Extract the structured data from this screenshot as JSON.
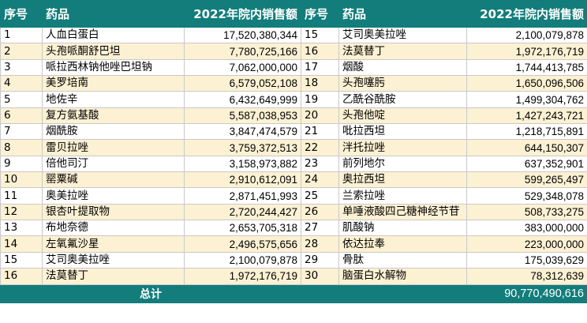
{
  "header": {
    "index": "序号",
    "drug": "药品",
    "sales": "2022年院内销售额"
  },
  "left_rows": [
    {
      "index": "1",
      "drug": "人血白蛋白",
      "sales": "17,520,380,344"
    },
    {
      "index": "2",
      "drug": "头孢哌酮舒巴坦",
      "sales": "7,780,725,166"
    },
    {
      "index": "3",
      "drug": "哌拉西林钠他唑巴坦钠",
      "sales": "7,062,000,000"
    },
    {
      "index": "4",
      "drug": "美罗培南",
      "sales": "6,579,052,108"
    },
    {
      "index": "5",
      "drug": "地佐辛",
      "sales": "6,432,649,999"
    },
    {
      "index": "6",
      "drug": "复方氨基酸",
      "sales": "5,587,038,953"
    },
    {
      "index": "7",
      "drug": "烟酰胺",
      "sales": "3,847,474,579"
    },
    {
      "index": "8",
      "drug": "雷贝拉唑",
      "sales": "3,759,372,513"
    },
    {
      "index": "9",
      "drug": "倍他司汀",
      "sales": "3,158,973,882"
    },
    {
      "index": "10",
      "drug": "罂粟碱",
      "sales": "2,910,612,091"
    },
    {
      "index": "11",
      "drug": "奥美拉唑",
      "sales": "2,871,451,993"
    },
    {
      "index": "12",
      "drug": "银杏叶提取物",
      "sales": "2,720,244,427"
    },
    {
      "index": "13",
      "drug": "布地奈德",
      "sales": "2,653,705,318"
    },
    {
      "index": "14",
      "drug": "左氧氟沙星",
      "sales": "2,496,575,656"
    },
    {
      "index": "15",
      "drug": "艾司奥美拉唑",
      "sales": "2,100,079,878"
    },
    {
      "index": "16",
      "drug": "法莫替丁",
      "sales": "1,972,176,719"
    }
  ],
  "right_rows": [
    {
      "index": "15",
      "drug": "艾司奥美拉唑",
      "sales": "2,100,079,878"
    },
    {
      "index": "16",
      "drug": "法莫替丁",
      "sales": "1,972,176,719"
    },
    {
      "index": "17",
      "drug": "烟酸",
      "sales": "1,744,413,785"
    },
    {
      "index": "18",
      "drug": "头孢噻肟",
      "sales": "1,650,096,506"
    },
    {
      "index": "19",
      "drug": "乙酰谷酰胺",
      "sales": "1,499,304,762"
    },
    {
      "index": "20",
      "drug": "头孢他啶",
      "sales": "1,427,243,721"
    },
    {
      "index": "21",
      "drug": "吡拉西坦",
      "sales": "1,218,715,891"
    },
    {
      "index": "22",
      "drug": "泮托拉唑",
      "sales": "644,150,307"
    },
    {
      "index": "23",
      "drug": "前列地尔",
      "sales": "637,352,901"
    },
    {
      "index": "24",
      "drug": "奥拉西坦",
      "sales": "599,265,497"
    },
    {
      "index": "25",
      "drug": "兰索拉唑",
      "sales": "529,348,078"
    },
    {
      "index": "26",
      "drug": "单唾液酸四己糖神经节苷",
      "sales": "508,733,275"
    },
    {
      "index": "27",
      "drug": "肌酸钠",
      "sales": "383,000,000"
    },
    {
      "index": "28",
      "drug": "依达拉奉",
      "sales": "223,000,000"
    },
    {
      "index": "29",
      "drug": "骨肽",
      "sales": "175,039,629"
    },
    {
      "index": "30",
      "drug": "脑蛋白水解物",
      "sales": "78,312,639"
    }
  ],
  "footer": {
    "label": "总计",
    "value": "90,770,490,616"
  }
}
